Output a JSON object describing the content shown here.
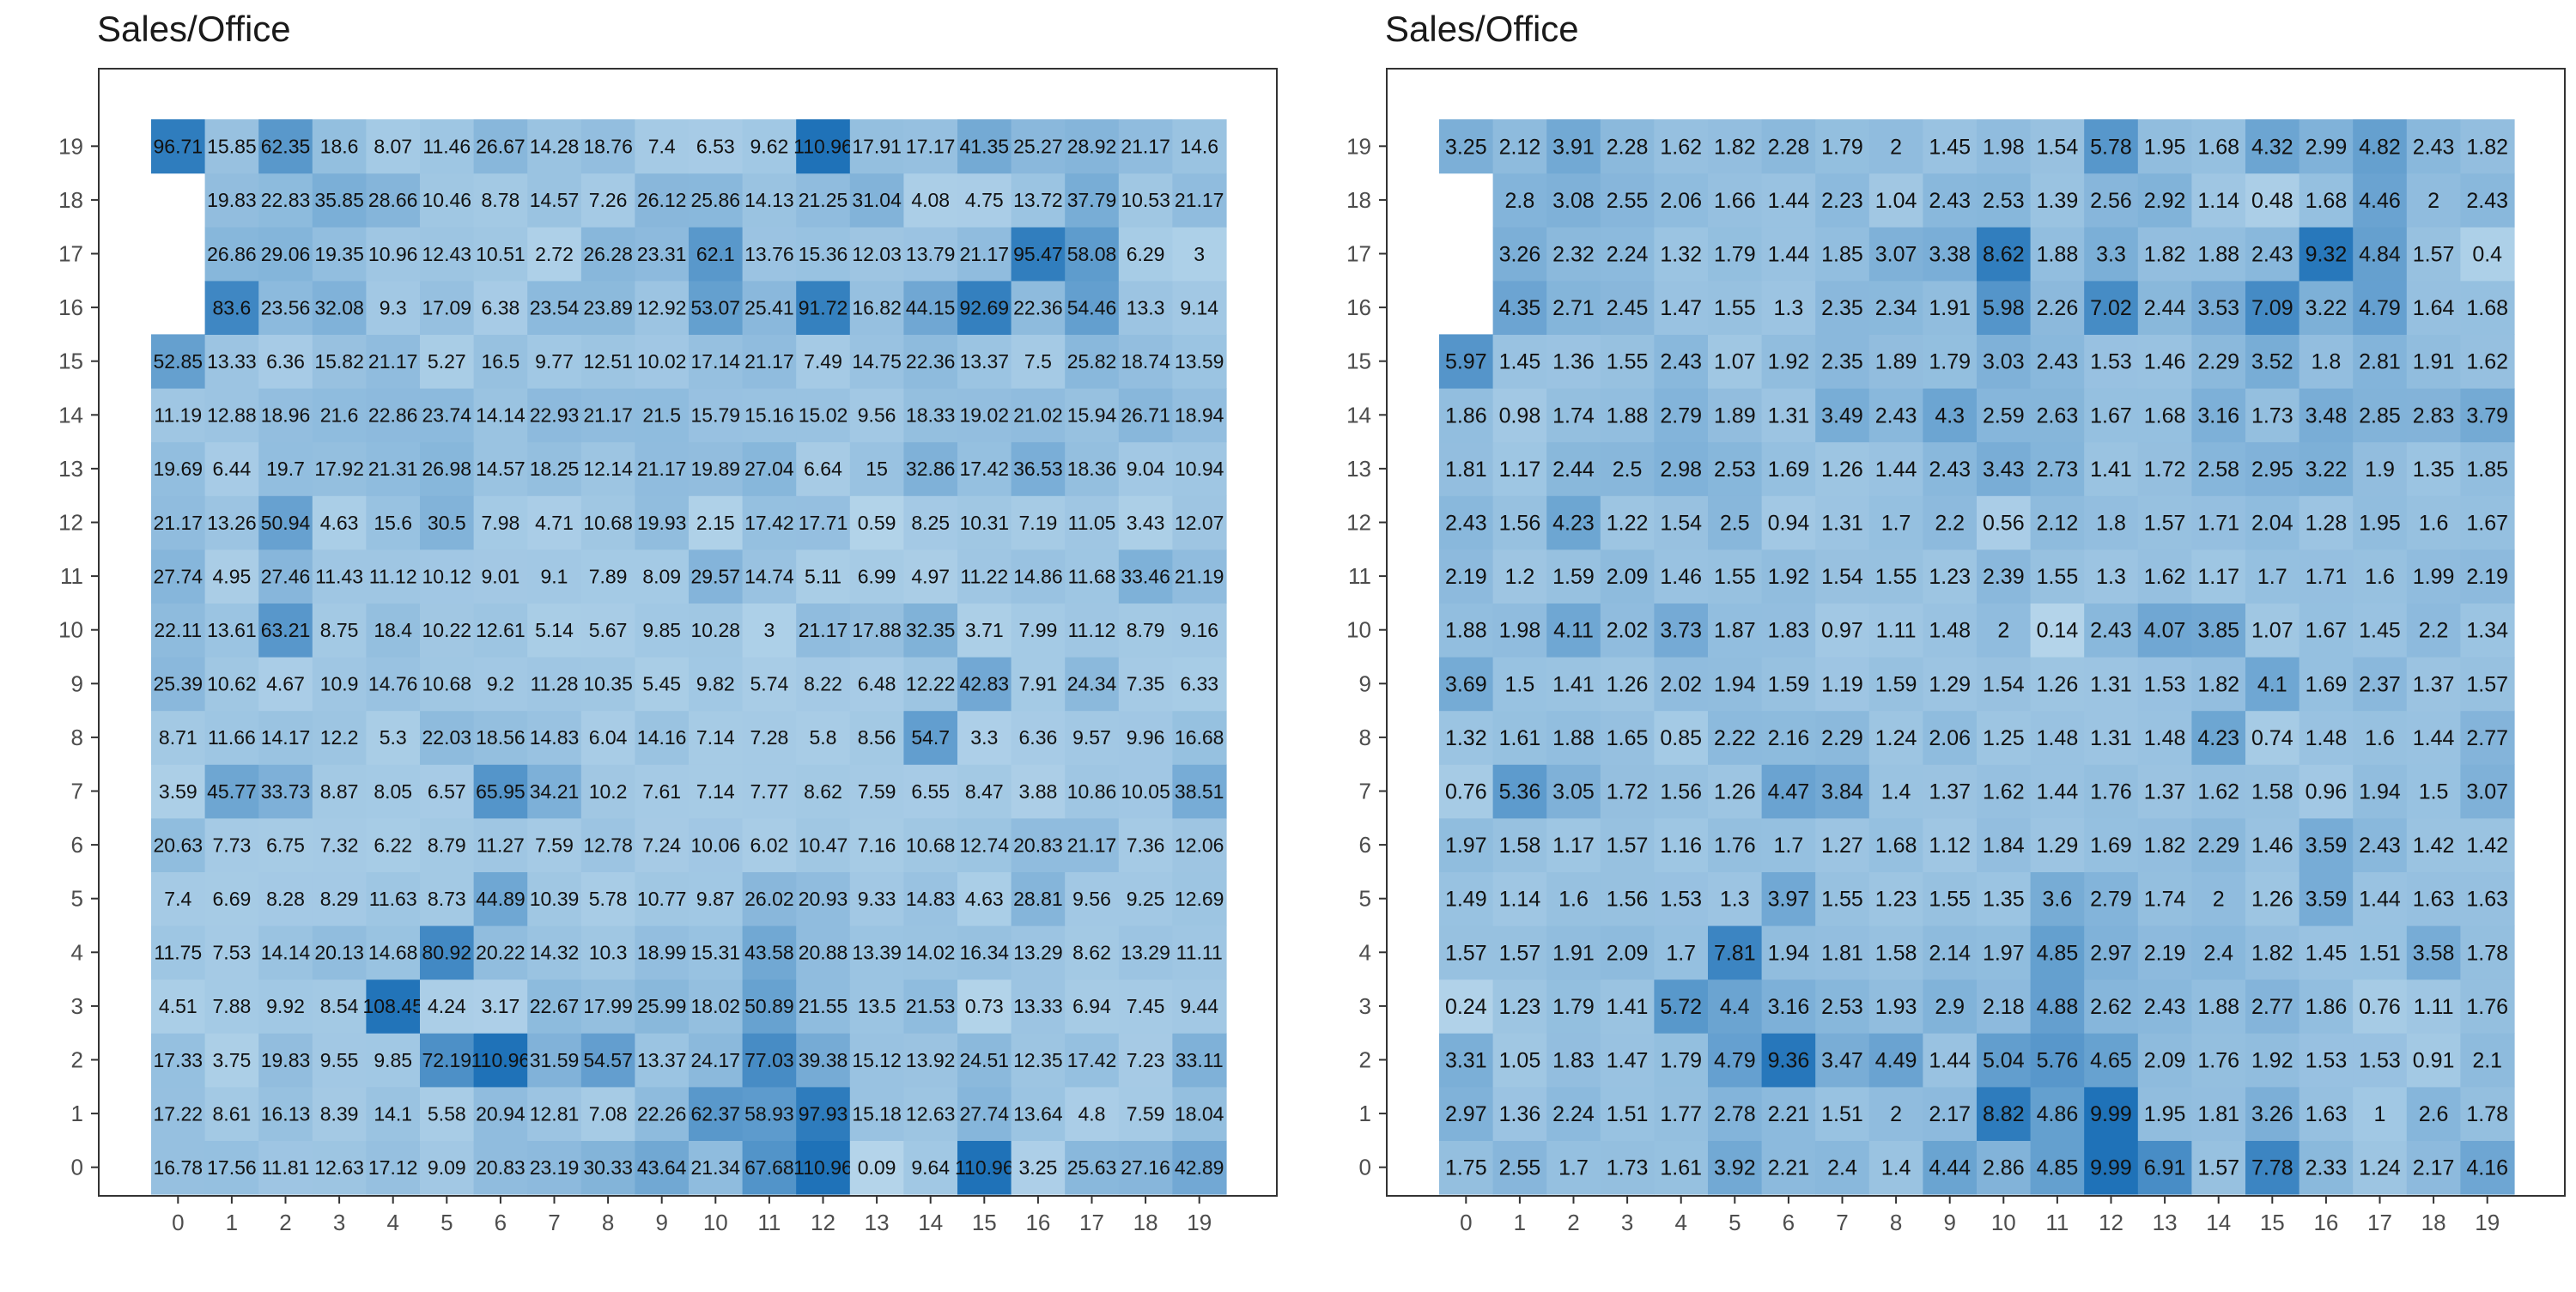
{
  "colors": {
    "low": "#b4d4ea",
    "high": "#1f72b8",
    "frame": "#333333",
    "tick_text": "#4d4d4d"
  },
  "chart_data": [
    {
      "type": "heatmap",
      "title": "Sales/Office",
      "xlabel": "",
      "ylabel": "",
      "x": [
        0,
        1,
        2,
        3,
        4,
        5,
        6,
        7,
        8,
        9,
        10,
        11,
        12,
        13,
        14,
        15,
        16,
        17,
        18,
        19
      ],
      "y": [
        0,
        1,
        2,
        3,
        4,
        5,
        6,
        7,
        8,
        9,
        10,
        11,
        12,
        13,
        14,
        15,
        16,
        17,
        18,
        19
      ],
      "grid": false,
      "legend": "none",
      "missing_cells": [
        [
          0,
          16
        ],
        [
          0,
          17
        ],
        [
          0,
          18
        ]
      ],
      "rows": {
        "19": [
          96.71,
          15.85,
          62.35,
          18.6,
          8.07,
          11.46,
          26.67,
          14.28,
          18.76,
          7.4,
          6.53,
          9.62,
          110.96,
          17.91,
          17.17,
          41.35,
          25.27,
          28.92,
          21.17,
          14.6
        ],
        "18": [
          null,
          19.83,
          22.83,
          35.85,
          28.66,
          10.46,
          8.78,
          14.57,
          7.26,
          26.12,
          25.86,
          14.13,
          21.25,
          31.04,
          4.08,
          4.75,
          13.72,
          37.79,
          10.53,
          21.17
        ],
        "17": [
          null,
          26.86,
          29.06,
          19.35,
          10.96,
          12.43,
          10.51,
          2.72,
          26.28,
          23.31,
          62.1,
          13.76,
          15.36,
          12.03,
          13.79,
          21.17,
          95.47,
          58.08,
          6.29,
          3
        ],
        "16": [
          null,
          83.6,
          23.56,
          32.08,
          9.3,
          17.09,
          6.38,
          23.54,
          23.89,
          12.92,
          53.07,
          25.41,
          91.72,
          16.82,
          44.15,
          92.69,
          22.36,
          54.46,
          13.3,
          9.14
        ],
        "15": [
          52.85,
          13.33,
          6.36,
          15.82,
          21.17,
          5.27,
          16.5,
          9.77,
          12.51,
          10.02,
          17.14,
          21.17,
          7.49,
          14.75,
          22.36,
          13.37,
          7.5,
          25.82,
          18.74,
          13.59
        ],
        "14": [
          11.19,
          12.88,
          18.96,
          21.6,
          22.86,
          23.74,
          14.14,
          22.93,
          21.17,
          21.5,
          15.79,
          15.16,
          15.02,
          9.56,
          18.33,
          19.02,
          21.02,
          15.94,
          26.71,
          18.94
        ],
        "13": [
          19.69,
          6.44,
          19.7,
          17.92,
          21.31,
          26.98,
          14.57,
          18.25,
          12.14,
          21.17,
          19.89,
          27.04,
          6.64,
          15,
          32.86,
          17.42,
          36.53,
          18.36,
          9.04,
          10.94
        ],
        "12": [
          21.17,
          13.26,
          50.94,
          4.63,
          15.6,
          30.5,
          7.98,
          4.71,
          10.68,
          19.93,
          2.15,
          17.42,
          17.71,
          0.59,
          8.25,
          10.31,
          7.19,
          11.05,
          3.43,
          12.07
        ],
        "11": [
          27.74,
          4.95,
          27.46,
          11.43,
          11.12,
          10.12,
          9.01,
          9.1,
          7.89,
          8.09,
          29.57,
          14.74,
          5.11,
          6.99,
          4.97,
          11.22,
          14.86,
          11.68,
          33.46,
          21.19
        ],
        "10": [
          22.11,
          13.61,
          63.21,
          8.75,
          18.4,
          10.22,
          12.61,
          5.14,
          5.67,
          9.85,
          10.28,
          3,
          21.17,
          17.88,
          32.35,
          3.71,
          7.99,
          11.12,
          8.79,
          9.16
        ],
        "9": [
          25.39,
          10.62,
          4.67,
          10.9,
          14.76,
          10.68,
          9.2,
          11.28,
          10.35,
          5.45,
          9.82,
          5.74,
          8.22,
          6.48,
          12.22,
          42.83,
          7.91,
          24.34,
          7.35,
          6.33
        ],
        "8": [
          8.71,
          11.66,
          14.17,
          12.2,
          5.3,
          22.03,
          18.56,
          14.83,
          6.04,
          14.16,
          7.14,
          7.28,
          5.8,
          8.56,
          54.7,
          3.3,
          6.36,
          9.57,
          9.96,
          16.68
        ],
        "7": [
          3.59,
          45.77,
          33.73,
          8.87,
          8.05,
          6.57,
          65.95,
          34.21,
          10.2,
          7.61,
          7.14,
          7.77,
          8.62,
          7.59,
          6.55,
          8.47,
          3.88,
          10.86,
          10.05,
          38.51
        ],
        "6": [
          20.63,
          7.73,
          6.75,
          7.32,
          6.22,
          8.79,
          11.27,
          7.59,
          12.78,
          7.24,
          10.06,
          6.02,
          10.47,
          7.16,
          10.68,
          12.74,
          20.83,
          21.17,
          7.36,
          12.06
        ],
        "5": [
          7.4,
          6.69,
          8.28,
          8.29,
          11.63,
          8.73,
          44.89,
          10.39,
          5.78,
          10.77,
          9.87,
          26.02,
          20.93,
          9.33,
          14.83,
          4.63,
          28.81,
          9.56,
          9.25,
          12.69
        ],
        "4": [
          11.75,
          7.53,
          14.14,
          20.13,
          14.68,
          80.92,
          20.22,
          14.32,
          10.3,
          18.99,
          15.31,
          43.58,
          20.88,
          13.39,
          14.02,
          16.34,
          13.29,
          8.62,
          13.29,
          11.11
        ],
        "3": [
          4.51,
          7.88,
          9.92,
          8.54,
          108.45,
          4.24,
          3.17,
          22.67,
          17.99,
          25.99,
          18.02,
          50.89,
          21.55,
          13.5,
          21.53,
          0.73,
          13.33,
          6.94,
          7.45,
          9.44
        ],
        "2": [
          17.33,
          3.75,
          19.83,
          9.55,
          9.85,
          72.19,
          110.96,
          31.59,
          54.57,
          13.37,
          24.17,
          77.03,
          39.38,
          15.12,
          13.92,
          24.51,
          12.35,
          17.42,
          7.23,
          33.11
        ],
        "1": [
          17.22,
          8.61,
          16.13,
          8.39,
          14.1,
          5.58,
          20.94,
          12.81,
          7.08,
          22.26,
          62.37,
          58.93,
          97.93,
          15.18,
          12.63,
          27.74,
          13.64,
          4.8,
          7.59,
          18.04
        ],
        "0": [
          16.78,
          17.56,
          11.81,
          12.63,
          17.12,
          9.09,
          20.83,
          23.19,
          30.33,
          43.64,
          21.34,
          67.68,
          110.96,
          0.09,
          9.64,
          110.96,
          3.25,
          25.63,
          27.16,
          42.89
        ]
      }
    },
    {
      "type": "heatmap",
      "title": "Sales/Office",
      "xlabel": "",
      "ylabel": "",
      "x": [
        0,
        1,
        2,
        3,
        4,
        5,
        6,
        7,
        8,
        9,
        10,
        11,
        12,
        13,
        14,
        15,
        16,
        17,
        18,
        19
      ],
      "y": [
        0,
        1,
        2,
        3,
        4,
        5,
        6,
        7,
        8,
        9,
        10,
        11,
        12,
        13,
        14,
        15,
        16,
        17,
        18,
        19
      ],
      "grid": false,
      "legend": "none",
      "missing_cells": [
        [
          0,
          16
        ],
        [
          0,
          17
        ],
        [
          0,
          18
        ]
      ],
      "rows": {
        "19": [
          3.25,
          2.12,
          3.91,
          2.28,
          1.62,
          1.82,
          2.28,
          1.79,
          2,
          1.45,
          1.98,
          1.54,
          5.78,
          1.95,
          1.68,
          4.32,
          2.99,
          4.82,
          2.43,
          1.82
        ],
        "18": [
          null,
          2.8,
          3.08,
          2.55,
          2.06,
          1.66,
          1.44,
          2.23,
          1.04,
          2.43,
          2.53,
          1.39,
          2.56,
          2.92,
          1.14,
          0.48,
          1.68,
          4.46,
          2,
          2.43
        ],
        "17": [
          null,
          3.26,
          2.32,
          2.24,
          1.32,
          1.79,
          1.44,
          1.85,
          3.07,
          3.38,
          8.62,
          1.88,
          3.3,
          1.82,
          1.88,
          2.43,
          9.32,
          4.84,
          1.57,
          0.4
        ],
        "16": [
          null,
          4.35,
          2.71,
          2.45,
          1.47,
          1.55,
          1.3,
          2.35,
          2.34,
          1.91,
          5.98,
          2.26,
          7.02,
          2.44,
          3.53,
          7.09,
          3.22,
          4.79,
          1.64,
          1.68
        ],
        "15": [
          5.97,
          1.45,
          1.36,
          1.55,
          2.43,
          1.07,
          1.92,
          2.35,
          1.89,
          1.79,
          3.03,
          2.43,
          1.53,
          1.46,
          2.29,
          3.52,
          1.8,
          2.81,
          1.91,
          1.62
        ],
        "14": [
          1.86,
          0.98,
          1.74,
          1.88,
          2.79,
          1.89,
          1.31,
          3.49,
          2.43,
          4.3,
          2.59,
          2.63,
          1.67,
          1.68,
          3.16,
          1.73,
          3.48,
          2.85,
          2.83,
          3.79
        ],
        "13": [
          1.81,
          1.17,
          2.44,
          2.5,
          2.98,
          2.53,
          1.69,
          1.26,
          1.44,
          2.43,
          3.43,
          2.73,
          1.41,
          1.72,
          2.58,
          2.95,
          3.22,
          1.9,
          1.35,
          1.85
        ],
        "12": [
          2.43,
          1.56,
          4.23,
          1.22,
          1.54,
          2.5,
          0.94,
          1.31,
          1.7,
          2.2,
          0.56,
          2.12,
          1.8,
          1.57,
          1.71,
          2.04,
          1.28,
          1.95,
          1.6,
          1.67
        ],
        "11": [
          2.19,
          1.2,
          1.59,
          2.09,
          1.46,
          1.55,
          1.92,
          1.54,
          1.55,
          1.23,
          2.39,
          1.55,
          1.3,
          1.62,
          1.17,
          1.7,
          1.71,
          1.6,
          1.99,
          2.19
        ],
        "10": [
          1.88,
          1.98,
          4.11,
          2.02,
          3.73,
          1.87,
          1.83,
          0.97,
          1.11,
          1.48,
          2,
          0.14,
          2.43,
          4.07,
          3.85,
          1.07,
          1.67,
          1.45,
          2.2,
          1.34
        ],
        "9": [
          3.69,
          1.5,
          1.41,
          1.26,
          2.02,
          1.94,
          1.59,
          1.19,
          1.59,
          1.29,
          1.54,
          1.26,
          1.31,
          1.53,
          1.82,
          4.1,
          1.69,
          2.37,
          1.37,
          1.57
        ],
        "8": [
          1.32,
          1.61,
          1.88,
          1.65,
          0.85,
          2.22,
          2.16,
          2.29,
          1.24,
          2.06,
          1.25,
          1.48,
          1.31,
          1.48,
          4.23,
          0.74,
          1.48,
          1.6,
          1.44,
          2.77
        ],
        "7": [
          0.76,
          5.36,
          3.05,
          1.72,
          1.56,
          1.26,
          4.47,
          3.84,
          1.4,
          1.37,
          1.62,
          1.44,
          1.76,
          1.37,
          1.62,
          1.58,
          0.96,
          1.94,
          1.5,
          3.07
        ],
        "6": [
          1.97,
          1.58,
          1.17,
          1.57,
          1.16,
          1.76,
          1.7,
          1.27,
          1.68,
          1.12,
          1.84,
          1.29,
          1.69,
          1.82,
          2.29,
          1.46,
          3.59,
          2.43,
          1.42,
          1.42
        ],
        "5": [
          1.49,
          1.14,
          1.6,
          1.56,
          1.53,
          1.3,
          3.97,
          1.55,
          1.23,
          1.55,
          1.35,
          3.6,
          2.79,
          1.74,
          2,
          1.26,
          3.59,
          1.44,
          1.63,
          1.63
        ],
        "4": [
          1.57,
          1.57,
          1.91,
          2.09,
          1.7,
          7.81,
          1.94,
          1.81,
          1.58,
          2.14,
          1.97,
          4.85,
          2.97,
          2.19,
          2.4,
          1.82,
          1.45,
          1.51,
          3.58,
          1.78
        ],
        "3": [
          0.24,
          1.23,
          1.79,
          1.41,
          5.72,
          4.4,
          3.16,
          2.53,
          1.93,
          2.9,
          2.18,
          4.88,
          2.62,
          2.43,
          1.88,
          2.77,
          1.86,
          0.76,
          1.11,
          1.76
        ],
        "2": [
          3.31,
          1.05,
          1.83,
          1.47,
          1.79,
          4.79,
          9.36,
          3.47,
          4.49,
          1.44,
          5.04,
          5.76,
          4.65,
          2.09,
          1.76,
          1.92,
          1.53,
          1.53,
          0.91,
          2.1
        ],
        "1": [
          2.97,
          1.36,
          2.24,
          1.51,
          1.77,
          2.78,
          2.21,
          1.51,
          2,
          2.17,
          8.82,
          4.86,
          9.99,
          1.95,
          1.81,
          3.26,
          1.63,
          1,
          2.6,
          1.78
        ],
        "0": [
          1.75,
          2.55,
          1.7,
          1.73,
          1.61,
          3.92,
          2.21,
          2.4,
          1.4,
          4.44,
          2.86,
          4.85,
          9.99,
          6.91,
          1.57,
          7.78,
          2.33,
          1.24,
          2.17,
          4.16
        ]
      }
    }
  ]
}
